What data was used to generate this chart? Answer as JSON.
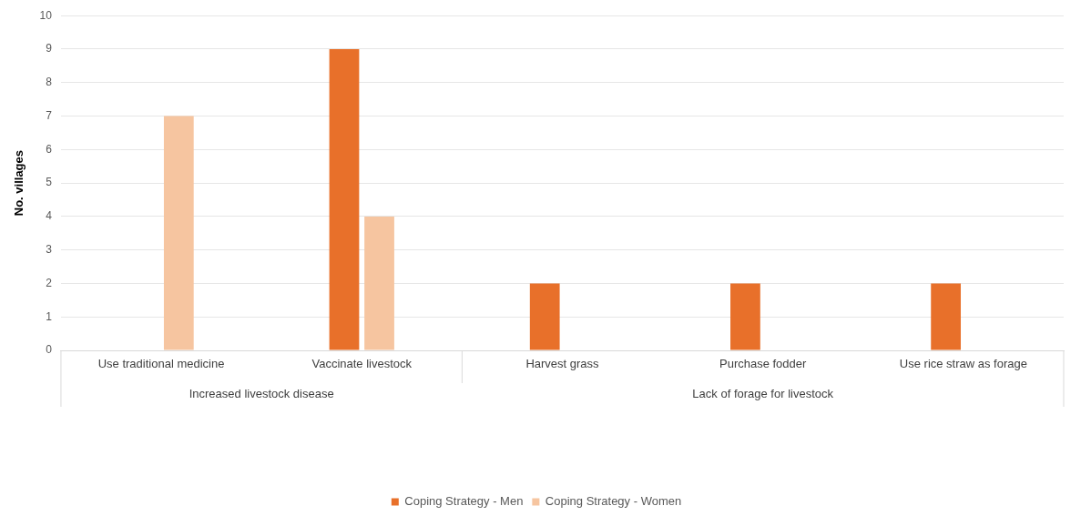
{
  "chart_data": {
    "type": "bar",
    "ylabel": "No. villages",
    "categories": [
      "Use traditional medicine",
      "Vaccinate livestock",
      "Harvest grass",
      "Purchase fodder",
      "Use rice straw as forage"
    ],
    "series": [
      {
        "name": "Coping Strategy - Men",
        "color": "#e8702a",
        "values": [
          0,
          9,
          2,
          2,
          2
        ]
      },
      {
        "name": "Coping Strategy - Women",
        "color": "#f6c5a0",
        "values": [
          7,
          4,
          0,
          0,
          0
        ]
      }
    ],
    "ylim": [
      0,
      10
    ],
    "yticks": [
      0,
      1,
      2,
      3,
      4,
      5,
      6,
      7,
      8,
      9,
      10
    ],
    "grid": "y",
    "legend": "bottom",
    "annotations": [
      "Increased livestock disease",
      "Lack of forage for livestock"
    ]
  }
}
